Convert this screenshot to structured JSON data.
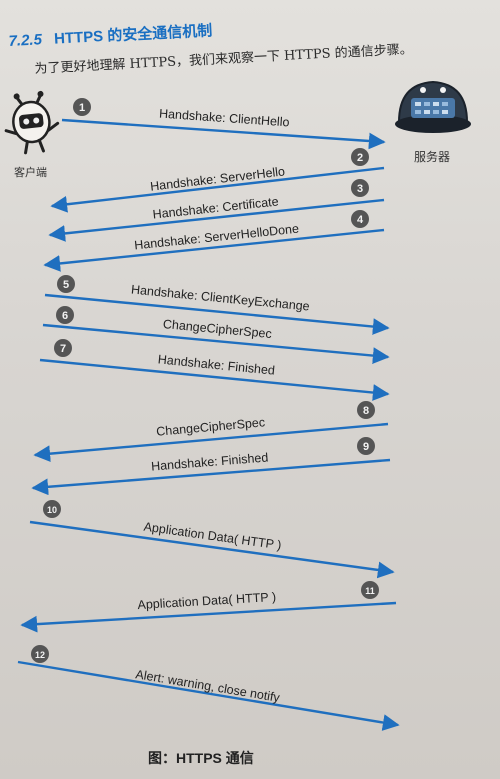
{
  "header": {
    "section_number": "7.2.5",
    "title": "HTTPS 的安全通信机制",
    "intro": "为了更好地理解 HTTPS，我们来观察一下 HTTPS 的通信步骤。"
  },
  "client": {
    "label": "客户端"
  },
  "server": {
    "label": "服务器"
  },
  "colors": {
    "arrow": "#1f6fbf",
    "step_circle": "#555555",
    "title": "#1a6fc2"
  },
  "steps": [
    {
      "number": "1",
      "label": "Handshake: ClientHello",
      "direction": "to-server"
    },
    {
      "number": "2",
      "label": "Handshake: ServerHello",
      "direction": "to-client"
    },
    {
      "number": "3",
      "label": "Handshake: Certificate",
      "direction": "to-client"
    },
    {
      "number": "4",
      "label": "Handshake: ServerHelloDone",
      "direction": "to-client"
    },
    {
      "number": "5",
      "label": "Handshake: ClientKeyExchange",
      "direction": "to-server"
    },
    {
      "number": "6",
      "label": "ChangeCipherSpec",
      "direction": "to-server"
    },
    {
      "number": "7",
      "label": "Handshake: Finished",
      "direction": "to-server"
    },
    {
      "number": "8",
      "label": "ChangeCipherSpec",
      "direction": "to-client"
    },
    {
      "number": "9",
      "label": "Handshake: Finished",
      "direction": "to-client"
    },
    {
      "number": "10",
      "label": "Application Data( HTTP )",
      "direction": "to-server"
    },
    {
      "number": "11",
      "label": "Application Data( HTTP )",
      "direction": "to-client"
    },
    {
      "number": "12",
      "label": "Alert: warning, close notify",
      "direction": "to-server"
    }
  ],
  "caption": "图：HTTPS 通信"
}
